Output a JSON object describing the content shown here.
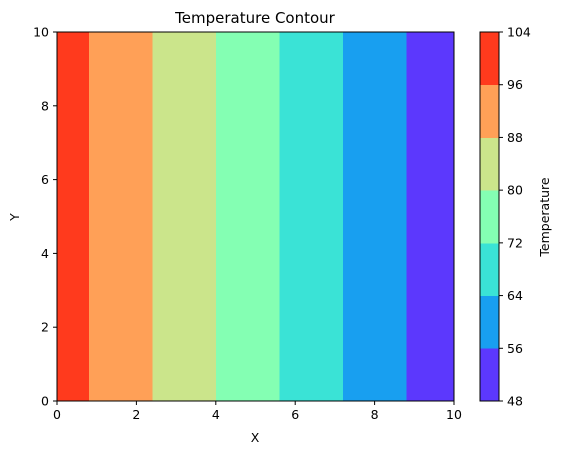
{
  "chart_data": {
    "type": "heatmap",
    "subtype": "filled-contour",
    "title": "Temperature Contour",
    "xlabel": "X",
    "ylabel": "Y",
    "xlim": [
      0,
      10
    ],
    "ylim": [
      0,
      10
    ],
    "x_ticks": [
      0,
      2,
      4,
      6,
      8,
      10
    ],
    "y_ticks": [
      0,
      2,
      4,
      6,
      8,
      10
    ],
    "grid": false,
    "bands": [
      {
        "x_start": 0.0,
        "x_end": 0.8,
        "level_min": 96,
        "level_max": 104,
        "color": "#ff3a1d"
      },
      {
        "x_start": 0.8,
        "x_end": 2.4,
        "level_min": 88,
        "level_max": 96,
        "color": "#ffa057"
      },
      {
        "x_start": 2.4,
        "x_end": 4.0,
        "level_min": 80,
        "level_max": 88,
        "color": "#cbe58b"
      },
      {
        "x_start": 4.0,
        "x_end": 5.6,
        "level_min": 72,
        "level_max": 80,
        "color": "#84ffb3"
      },
      {
        "x_start": 5.6,
        "x_end": 7.2,
        "level_min": 64,
        "level_max": 72,
        "color": "#3ae3d6"
      },
      {
        "x_start": 7.2,
        "x_end": 8.8,
        "level_min": 56,
        "level_max": 64,
        "color": "#189ff0"
      },
      {
        "x_start": 8.8,
        "x_end": 10.0,
        "level_min": 48,
        "level_max": 56,
        "color": "#5c38fd"
      }
    ],
    "colorbar": {
      "label": "Temperature",
      "levels": [
        48,
        56,
        64,
        72,
        80,
        88,
        96,
        104
      ],
      "tick_labels": [
        "48",
        "56",
        "64",
        "72",
        "80",
        "88",
        "96",
        "104"
      ],
      "colors": [
        "#5c38fd",
        "#189ff0",
        "#3ae3d6",
        "#84ffb3",
        "#cbe58b",
        "#ffa057",
        "#ff3a1d"
      ]
    }
  }
}
